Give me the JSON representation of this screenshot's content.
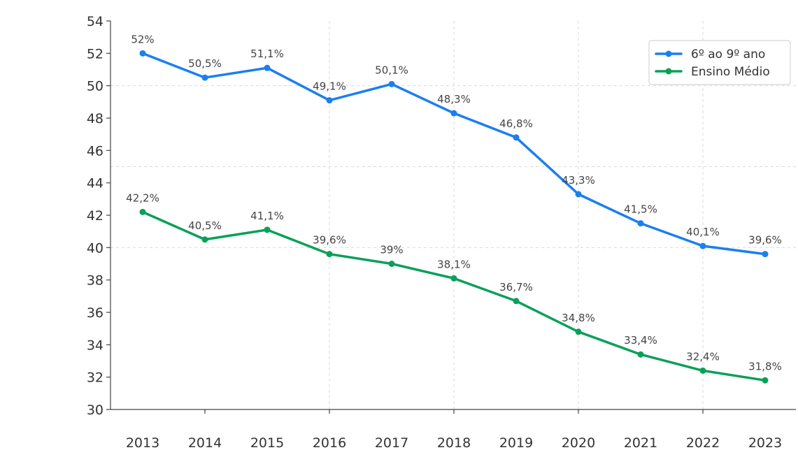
{
  "chart_data": {
    "type": "line",
    "title": "",
    "xlabel": "",
    "ylabel": "",
    "categories": [
      "2013",
      "2014",
      "2015",
      "2016",
      "2017",
      "2018",
      "2019",
      "2020",
      "2021",
      "2022",
      "2023"
    ],
    "ylim": [
      30,
      54
    ],
    "yticks": [
      30,
      32,
      34,
      36,
      38,
      40,
      42,
      44,
      46,
      48,
      50,
      52,
      54
    ],
    "grid": true,
    "legend_position": "top-right",
    "series": [
      {
        "name": "6º ao 9º ano",
        "color": "#1a7ff0",
        "values": [
          52,
          50.5,
          51.1,
          49.1,
          50.1,
          48.3,
          46.8,
          43.3,
          41.5,
          40.1,
          39.6
        ],
        "labels": [
          "52%",
          "50,5%",
          "51,1%",
          "49,1%",
          "50,1%",
          "48,3%",
          "46,8%",
          "43,3%",
          "41,5%",
          "40,1%",
          "39,6%"
        ]
      },
      {
        "name": "Ensino Médio",
        "color": "#0aa05a",
        "values": [
          42.2,
          40.5,
          41.1,
          39.6,
          39,
          38.1,
          36.7,
          34.8,
          33.4,
          32.4,
          31.8
        ],
        "labels": [
          "42,2%",
          "40,5%",
          "41,1%",
          "39,6%",
          "39%",
          "38,1%",
          "36,7%",
          "34,8%",
          "33,4%",
          "32,4%",
          "31,8%"
        ]
      }
    ]
  }
}
